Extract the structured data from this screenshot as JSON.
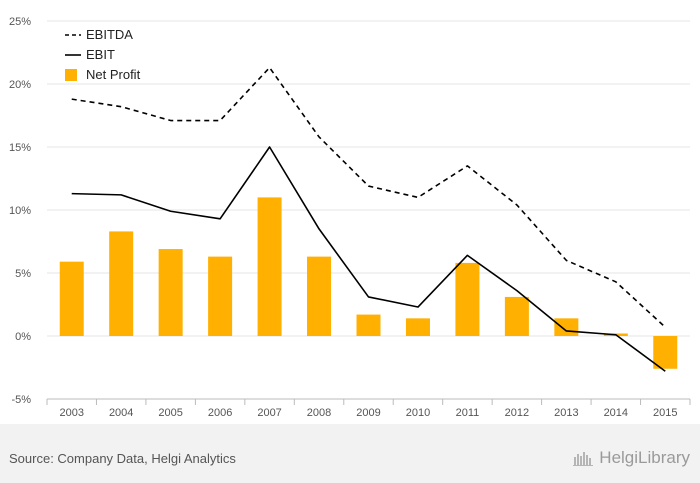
{
  "chart_data": {
    "type": "bar",
    "title": "",
    "xlabel": "",
    "ylabel": "",
    "categories": [
      "2003",
      "2004",
      "2005",
      "2006",
      "2007",
      "2008",
      "2009",
      "2010",
      "2011",
      "2012",
      "2013",
      "2014",
      "2015"
    ],
    "ylim": [
      -5,
      25
    ],
    "yticks": [
      -5,
      0,
      5,
      10,
      15,
      20,
      25
    ],
    "ytick_labels": [
      "-5%",
      "0%",
      "5%",
      "10%",
      "15%",
      "20%",
      "25%"
    ],
    "grid": true,
    "legend_position": "top-left",
    "series": [
      {
        "name": "EBITDA",
        "type": "line",
        "style": "dashed",
        "color": "#000000",
        "values": [
          18.8,
          18.2,
          17.1,
          17.1,
          21.3,
          15.8,
          11.9,
          11.0,
          13.5,
          10.4,
          6.0,
          4.3,
          0.7
        ]
      },
      {
        "name": "EBIT",
        "type": "line",
        "style": "solid",
        "color": "#000000",
        "values": [
          11.3,
          11.2,
          9.9,
          9.3,
          15.0,
          8.5,
          3.1,
          2.3,
          6.4,
          3.6,
          0.4,
          0.1,
          -2.8
        ]
      },
      {
        "name": "Net Profit",
        "type": "bar",
        "color": "#FFB000",
        "values": [
          5.9,
          8.3,
          6.9,
          6.3,
          11.0,
          6.3,
          1.7,
          1.4,
          5.8,
          3.1,
          1.4,
          0.2,
          -2.6
        ]
      }
    ]
  },
  "footer": {
    "source": "Source: Company Data, Helgi Analytics",
    "brand": "HelgiLibrary"
  }
}
